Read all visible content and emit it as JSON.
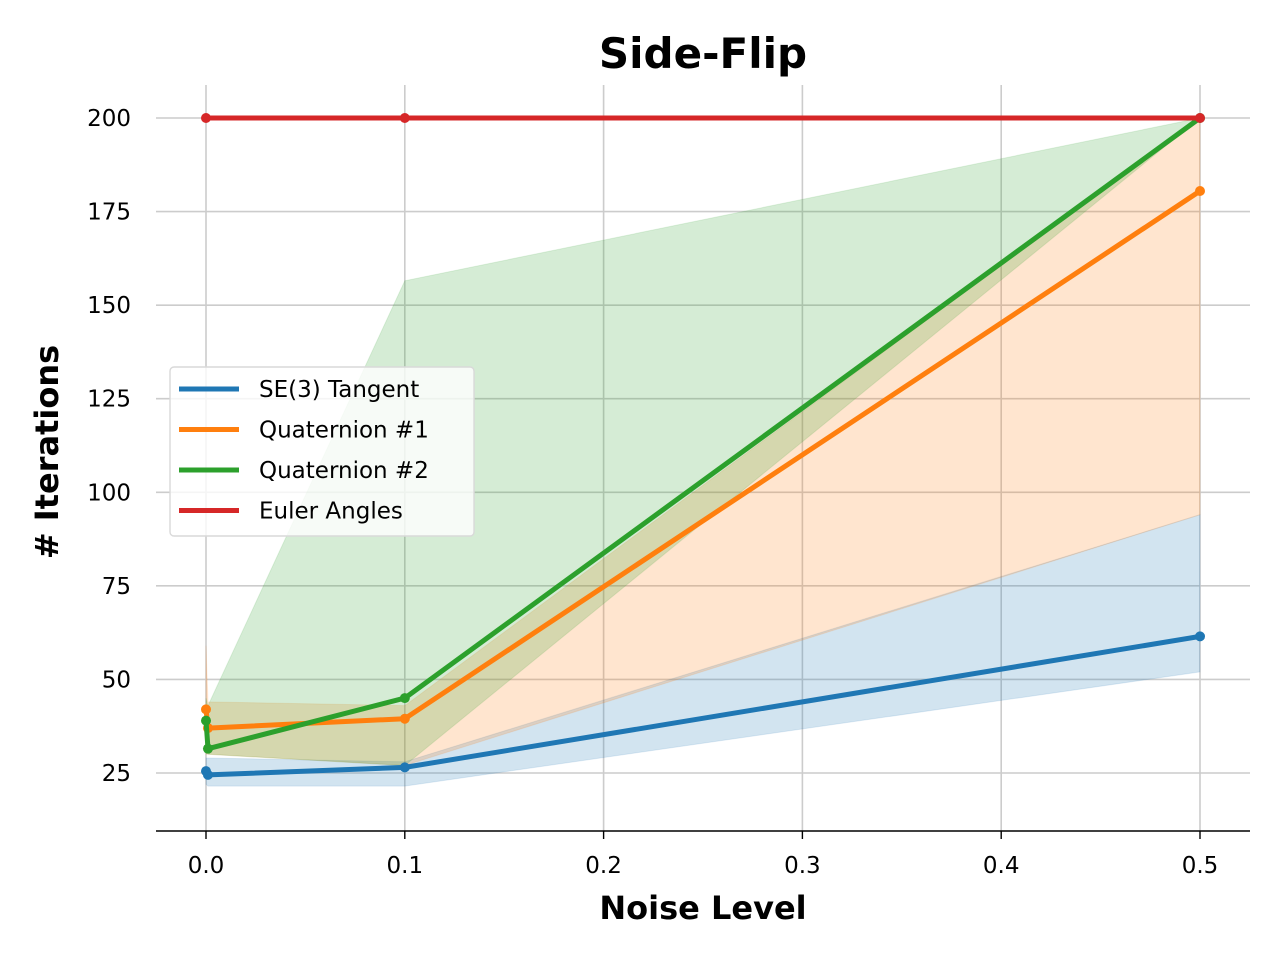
{
  "colors": {
    "blue": "#1f77b4",
    "orange": "#ff7f0e",
    "green": "#2ca02c",
    "red": "#d62728",
    "grid": "#cccccc"
  },
  "chart_data": {
    "type": "line",
    "title": "Side-Flip",
    "xlabel": "Noise Level",
    "ylabel": "# Iterations",
    "xlim": [
      -0.025,
      0.525
    ],
    "ylim": [
      10,
      210
    ],
    "xticks": [
      0.0,
      0.1,
      0.2,
      0.3,
      0.4,
      0.5
    ],
    "xtick_labels": [
      "0.0",
      "0.1",
      "0.2",
      "0.3",
      "0.4",
      "0.5"
    ],
    "yticks": [
      25,
      50,
      75,
      100,
      125,
      150,
      175,
      200
    ],
    "ytick_labels": [
      "25",
      "50",
      "75",
      "100",
      "125",
      "150",
      "175",
      "200"
    ],
    "grid": true,
    "legend_position": "center-left",
    "series": [
      {
        "name": "SE(3) Tangent",
        "color": "#1f77b4",
        "x": [
          0.0,
          0.001,
          0.1,
          0.5
        ],
        "y": [
          25.5,
          24.5,
          26.5,
          61.5
        ],
        "band_upper": [
          29,
          29,
          28,
          94
        ],
        "band_lower": [
          22,
          21.5,
          21.5,
          52
        ]
      },
      {
        "name": "Quaternion #1",
        "color": "#ff7f0e",
        "x": [
          0.0,
          0.001,
          0.1,
          0.5
        ],
        "y": [
          42,
          37,
          39.5,
          180.5
        ],
        "band_upper": [
          59,
          44,
          43,
          200
        ],
        "band_lower": [
          30,
          30,
          27,
          94
        ]
      },
      {
        "name": "Quaternion #2",
        "color": "#2ca02c",
        "x": [
          0.0,
          0.001,
          0.1,
          0.5
        ],
        "y": [
          39,
          31.5,
          45,
          200
        ],
        "band_upper": [
          45,
          43,
          156.5,
          200
        ],
        "band_lower": [
          31,
          30,
          27,
          200
        ]
      },
      {
        "name": "Euler Angles",
        "color": "#d62728",
        "x": [
          0.0,
          0.1,
          0.5
        ],
        "y": [
          200,
          200,
          200
        ],
        "band_upper": null,
        "band_lower": null
      }
    ]
  }
}
